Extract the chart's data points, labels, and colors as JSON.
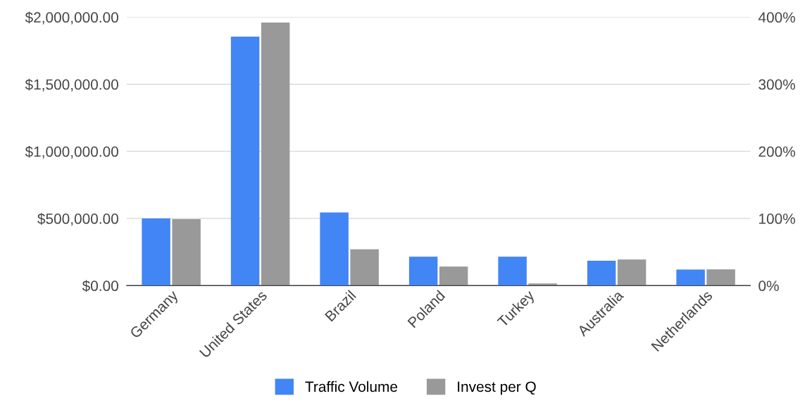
{
  "chart_data": {
    "type": "bar",
    "categories": [
      "Germany",
      "United States",
      "Brazil",
      "Poland",
      "Turkey",
      "Australia",
      "Netherlands"
    ],
    "series": [
      {
        "name": "Traffic Volume",
        "color": "#4285f4",
        "axis": "y2",
        "values": [
          100,
          371,
          109,
          43,
          43,
          37,
          24
        ]
      },
      {
        "name": "Invest per Q",
        "color": "#999999",
        "values": [
          495000,
          1960000,
          270000,
          142000,
          16000,
          194000,
          121000
        ]
      }
    ],
    "ylim": [
      0,
      2000000
    ],
    "yticks": [
      {
        "value": 0,
        "label": "$0.00"
      },
      {
        "value": 500000,
        "label": "$500,000.00"
      },
      {
        "value": 1000000,
        "label": "$1,000,000.00"
      },
      {
        "value": 1500000,
        "label": "$1,500,000.00"
      },
      {
        "value": 2000000,
        "label": "$2,000,000.00"
      }
    ],
    "y2lim": [
      0,
      400
    ],
    "y2ticks": [
      {
        "value": 0,
        "label": "0%"
      },
      {
        "value": 100,
        "label": "100%"
      },
      {
        "value": 200,
        "label": "200%"
      },
      {
        "value": 300,
        "label": "300%"
      },
      {
        "value": 400,
        "label": "400%"
      }
    ],
    "grid": "y",
    "legend": "bottom"
  }
}
